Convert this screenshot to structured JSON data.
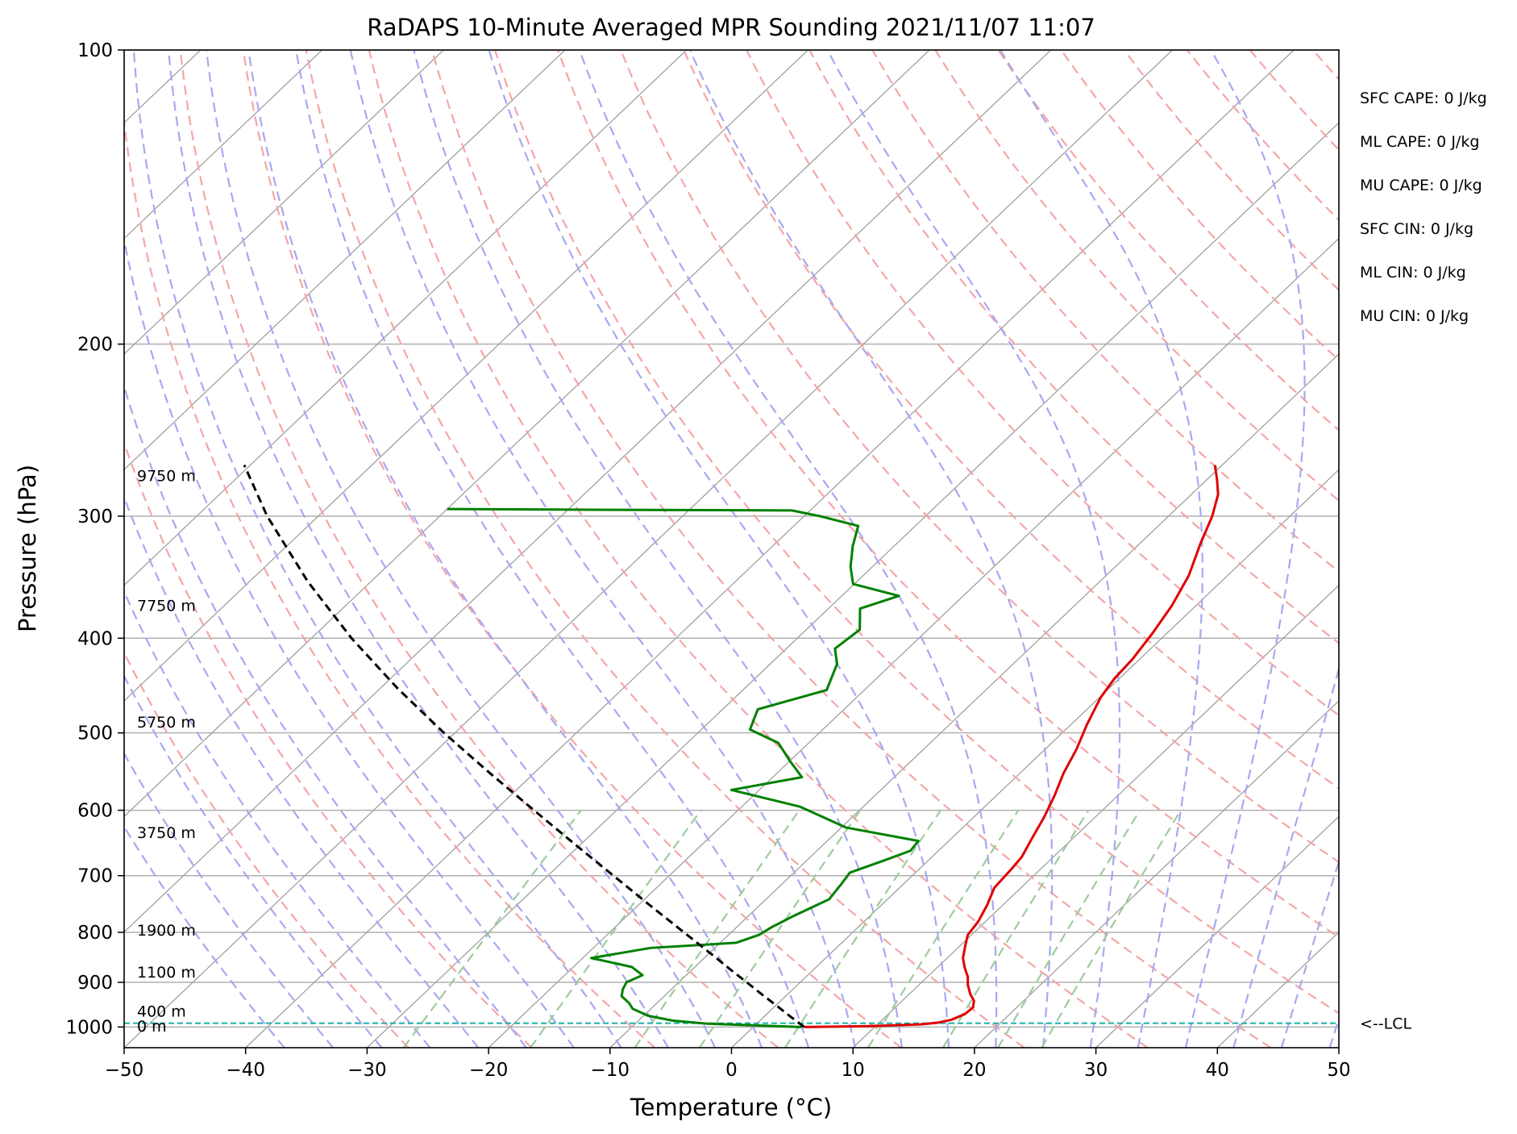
{
  "chart_data": {
    "type": "line",
    "subtype": "skew-T log-P sounding",
    "title": "RaDAPS 10-Minute Averaged MPR Sounding 2021/11/07 11:07",
    "xlabel": "Temperature (°C)",
    "ylabel": "Pressure (hPa)",
    "xlim": [
      -50,
      50
    ],
    "ylim": [
      1050,
      100
    ],
    "y_scale": "log",
    "x_ticks": [
      "−50",
      "−40",
      "−30",
      "−20",
      "−10",
      "0",
      "10",
      "20",
      "30",
      "40",
      "50"
    ],
    "x_tick_values": [
      -50,
      -40,
      -30,
      -20,
      -10,
      0,
      10,
      20,
      30,
      40,
      50
    ],
    "y_ticks": [
      "100",
      "200",
      "300",
      "400",
      "500",
      "600",
      "700",
      "800",
      "900",
      "1000"
    ],
    "y_tick_values": [
      100,
      200,
      300,
      400,
      500,
      600,
      700,
      800,
      900,
      1000
    ],
    "grid": true,
    "series": [
      {
        "role": "temperature",
        "color": "#e00000",
        "points": [
          [
            1000,
            4.2
          ],
          [
            998,
            9.5
          ],
          [
            994,
            13.5
          ],
          [
            990,
            14.8
          ],
          [
            983,
            15.7
          ],
          [
            970,
            16.3
          ],
          [
            955,
            16.4
          ],
          [
            940,
            15.9
          ],
          [
            925,
            15.0
          ],
          [
            905,
            14.0
          ],
          [
            888,
            13.3
          ],
          [
            870,
            12.3
          ],
          [
            850,
            11.3
          ],
          [
            825,
            10.4
          ],
          [
            805,
            9.7
          ],
          [
            780,
            9.4
          ],
          [
            750,
            8.7
          ],
          [
            720,
            7.8
          ],
          [
            690,
            7.6
          ],
          [
            670,
            7.4
          ],
          [
            640,
            6.6
          ],
          [
            610,
            5.8
          ],
          [
            580,
            4.8
          ],
          [
            550,
            3.6
          ],
          [
            520,
            2.6
          ],
          [
            490,
            1.3
          ],
          [
            460,
            0.1
          ],
          [
            440,
            -0.4
          ],
          [
            420,
            -0.6
          ],
          [
            395,
            -1.2
          ],
          [
            370,
            -2.0
          ],
          [
            345,
            -3.2
          ],
          [
            320,
            -5.0
          ],
          [
            300,
            -6.4
          ],
          [
            285,
            -7.8
          ],
          [
            275,
            -9.2
          ],
          [
            266,
            -10.6
          ]
        ]
      },
      {
        "role": "dewpoint",
        "color": "#008000",
        "points": [
          [
            1000,
            4.0
          ],
          [
            997,
            0.8
          ],
          [
            992,
            -4.2
          ],
          [
            985,
            -7.2
          ],
          [
            974,
            -9.6
          ],
          [
            958,
            -11.5
          ],
          [
            945,
            -12.3
          ],
          [
            930,
            -13.5
          ],
          [
            915,
            -14.0
          ],
          [
            900,
            -14.3
          ],
          [
            885,
            -13.6
          ],
          [
            868,
            -15.2
          ],
          [
            850,
            -19.3
          ],
          [
            830,
            -15.3
          ],
          [
            820,
            -8.7
          ],
          [
            805,
            -7.5
          ],
          [
            790,
            -7.1
          ],
          [
            770,
            -6.3
          ],
          [
            740,
            -4.8
          ],
          [
            715,
            -5.1
          ],
          [
            695,
            -5.4
          ],
          [
            675,
            -3.6
          ],
          [
            660,
            -2.3
          ],
          [
            645,
            -2.5
          ],
          [
            625,
            -9.6
          ],
          [
            595,
            -15.2
          ],
          [
            572,
            -22.3
          ],
          [
            555,
            -17.6
          ],
          [
            535,
            -19.9
          ],
          [
            512,
            -22.5
          ],
          [
            496,
            -26.0
          ],
          [
            473,
            -27.1
          ],
          [
            452,
            -23.1
          ],
          [
            425,
            -24.5
          ],
          [
            410,
            -26.0
          ],
          [
            392,
            -25.6
          ],
          [
            373,
            -27.4
          ],
          [
            362,
            -25.3
          ],
          [
            352,
            -30.1
          ],
          [
            338,
            -31.8
          ],
          [
            322,
            -33.4
          ],
          [
            307,
            -34.7
          ],
          [
            300,
            -38.7
          ],
          [
            296,
            -41.5
          ],
          [
            295.5,
            -58
          ],
          [
            295,
            -70
          ]
        ]
      },
      {
        "role": "parcel",
        "color": "#000000",
        "style": "dashed",
        "points": [
          [
            1000,
            4.2
          ],
          [
            975,
            2.1
          ],
          [
            950,
            0.0
          ],
          [
            925,
            -2.2
          ],
          [
            900,
            -4.4
          ],
          [
            875,
            -6.7
          ],
          [
            850,
            -9.0
          ],
          [
            800,
            -13.9
          ],
          [
            750,
            -19.1
          ],
          [
            700,
            -24.6
          ],
          [
            650,
            -30.5
          ],
          [
            600,
            -36.8
          ],
          [
            550,
            -43.6
          ],
          [
            500,
            -50.9
          ],
          [
            450,
            -58.6
          ],
          [
            400,
            -66.7
          ],
          [
            350,
            -75.2
          ],
          [
            300,
            -84.2
          ],
          [
            266,
            -90.5
          ]
        ]
      }
    ],
    "reference_lines": {
      "isotherms": {
        "color": "#a0a0a0",
        "style": "solid"
      },
      "dry_adiabats": {
        "color": "#f4a6a6",
        "style": "dashed"
      },
      "moist_adiabats": {
        "color": "#a8a8f0",
        "style": "dashed"
      },
      "mixing_ratio": {
        "color": "#9ccc9c",
        "style": "dashed"
      }
    },
    "lcl": {
      "pressure_hpa": 991,
      "label": "<--LCL",
      "color": "#17b0a8"
    },
    "height_labels": [
      {
        "pressure_hpa": 999,
        "text": "0 m"
      },
      {
        "pressure_hpa": 965,
        "text": "400 m"
      },
      {
        "pressure_hpa": 880,
        "text": "1100 m"
      },
      {
        "pressure_hpa": 797,
        "text": "1900 m"
      },
      {
        "pressure_hpa": 633,
        "text": "3750 m"
      },
      {
        "pressure_hpa": 488,
        "text": "5750 m"
      },
      {
        "pressure_hpa": 371,
        "text": "7750 m"
      },
      {
        "pressure_hpa": 273,
        "text": "9750 m"
      }
    ],
    "annotations": [
      "SFC CAPE: 0 J/kg",
      "ML CAPE: 0 J/kg",
      "MU CAPE: 0 J/kg",
      "SFC CIN: 0 J/kg",
      "ML CIN: 0 J/kg",
      "MU CIN: 0 J/kg"
    ]
  }
}
